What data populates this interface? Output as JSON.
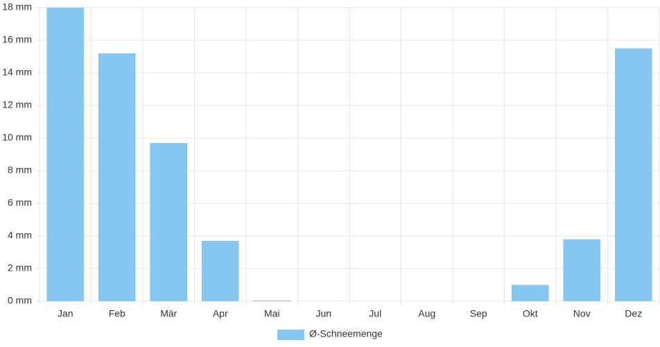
{
  "chart_data": {
    "type": "bar",
    "categories": [
      "Jan",
      "Feb",
      "Mär",
      "Apr",
      "Mai",
      "Jun",
      "Jul",
      "Aug",
      "Sep",
      "Okt",
      "Nov",
      "Dez"
    ],
    "series": [
      {
        "name": "Ø-Schneemenge",
        "color": "#88c6f2",
        "values": [
          18,
          15.2,
          9.7,
          3.7,
          0.05,
          0,
          0,
          0,
          0,
          1.0,
          3.8,
          15.5
        ]
      }
    ],
    "ylim": [
      0,
      18
    ],
    "yticks": [
      {
        "value": 0,
        "label": "0 mm"
      },
      {
        "value": 2,
        "label": "2 mm"
      },
      {
        "value": 4,
        "label": "4 mm"
      },
      {
        "value": 6,
        "label": "6 mm"
      },
      {
        "value": 8,
        "label": "8 mm"
      },
      {
        "value": 10,
        "label": "10 mm"
      },
      {
        "value": 12,
        "label": "12 mm"
      },
      {
        "value": 14,
        "label": "14 mm"
      },
      {
        "value": 16,
        "label": "16 mm"
      },
      {
        "value": 18,
        "label": "18 mm"
      }
    ],
    "grid": true,
    "legend": "bottom"
  }
}
